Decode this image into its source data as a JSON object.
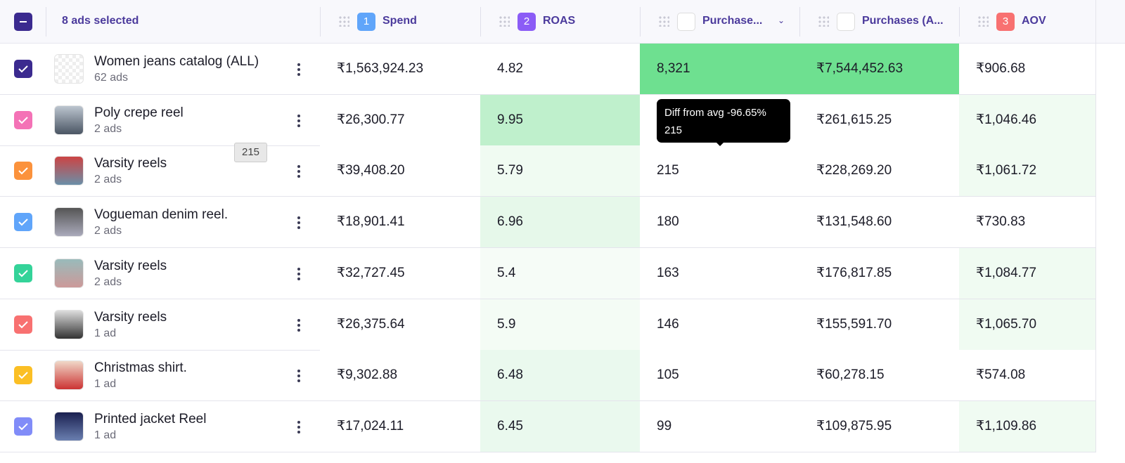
{
  "header": {
    "selection": "8 ads selected",
    "columns": [
      {
        "badge": "1",
        "label": "Spend"
      },
      {
        "badge": "2",
        "label": "ROAS"
      },
      {
        "label": "Purchase..."
      },
      {
        "label": "Purchases (A..."
      },
      {
        "badge": "3",
        "label": "AOV"
      }
    ]
  },
  "rows": [
    {
      "name": "Women jeans catalog (ALL)",
      "count": "62 ads",
      "cells": [
        "₹1,563,924.23",
        "4.82",
        "8,321",
        "₹7,544,452.63",
        "₹906.68"
      ]
    },
    {
      "name": "Poly crepe reel",
      "count": "2 ads",
      "cells": [
        "₹26,300.77",
        "9.95",
        null,
        "₹261,615.25",
        "₹1,046.46"
      ]
    },
    {
      "name": "Varsity reels",
      "count": "2 ads",
      "cells": [
        "₹39,408.20",
        "5.79",
        "215",
        "₹228,269.20",
        "₹1,061.72"
      ]
    },
    {
      "name": "Vogueman denim reel.",
      "count": "2 ads",
      "cells": [
        "₹18,901.41",
        "6.96",
        "180",
        "₹131,548.60",
        "₹730.83"
      ]
    },
    {
      "name": "Varsity reels",
      "count": "2 ads",
      "cells": [
        "₹32,727.45",
        "5.4",
        "163",
        "₹176,817.85",
        "₹1,084.77"
      ]
    },
    {
      "name": "Varsity reels",
      "count": "1 ad",
      "cells": [
        "₹26,375.64",
        "5.9",
        "146",
        "₹155,591.70",
        "₹1,065.70"
      ]
    },
    {
      "name": "Christmas shirt.",
      "count": "1 ad",
      "cells": [
        "₹9,302.88",
        "6.48",
        "105",
        "₹60,278.15",
        "₹574.08"
      ]
    },
    {
      "name": "Printed jacket Reel",
      "count": "1 ad",
      "cells": [
        "₹17,024.11",
        "6.45",
        "99",
        "₹109,875.95",
        "₹1,109.86"
      ]
    }
  ],
  "tooltip": {
    "title": "Diff from avg -96.65%",
    "value": "215"
  },
  "drag_label": "215"
}
